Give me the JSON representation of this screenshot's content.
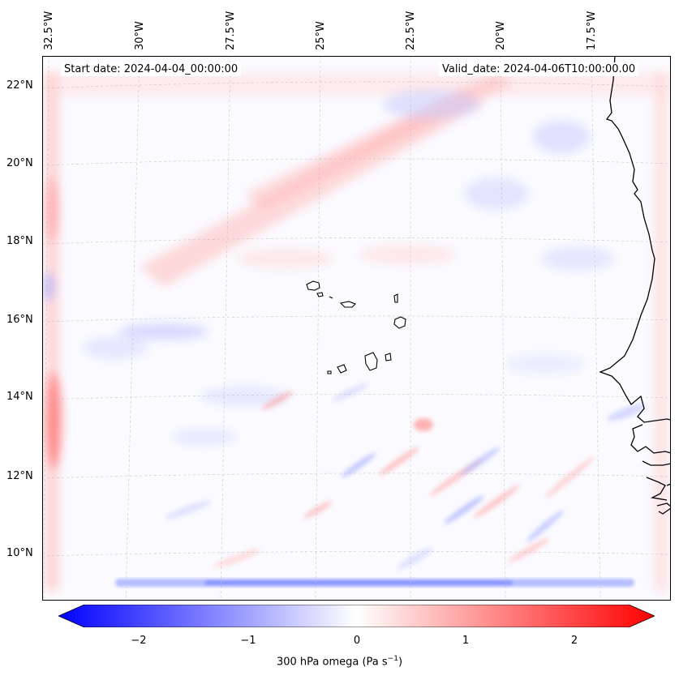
{
  "map": {
    "start_date": "Start date: 2024-04-04_00:00:00",
    "valid_date": "Valid_date: 2024-04-06T10:00:00.00",
    "lon_labels": [
      "32.5°W",
      "30°W",
      "27.5°W",
      "25°W",
      "22.5°W",
      "20°W",
      "17.5°W"
    ],
    "lat_labels": [
      "22°N",
      "20°N",
      "18°N",
      "16°N",
      "14°N",
      "12°N",
      "10°N"
    ],
    "colors": {
      "negative": "#0000ff",
      "positive": "#ff0000",
      "neutral": "#ffffff",
      "coast": "#000000"
    }
  },
  "colorbar": {
    "ticks": [
      "−2",
      "−1",
      "0",
      "1",
      "2"
    ],
    "label": "300 hPa omega (Pa s",
    "label_sup": "−1",
    "label_end": ")",
    "range": [
      -2.5,
      2.5
    ]
  }
}
